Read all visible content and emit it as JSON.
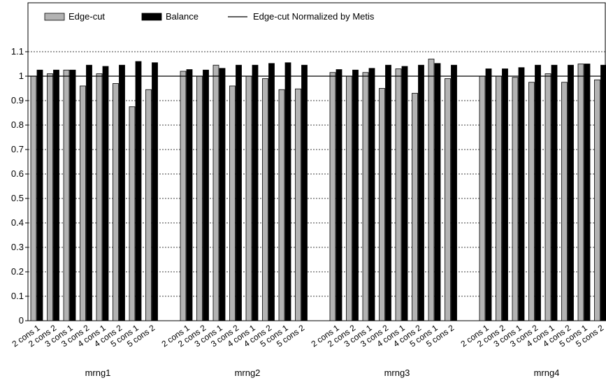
{
  "chart_data": {
    "type": "bar",
    "groups": [
      "mrng1",
      "mrng2",
      "mrng3",
      "mrng4"
    ],
    "categories": [
      "2 cons 1",
      "2 cons 2",
      "3 cons 1",
      "3 cons 2",
      "4 cons 1",
      "4 cons 2",
      "5 cons 1",
      "5 cons 2"
    ],
    "series": [
      {
        "name": "Edge-cut",
        "color": "#b3b3b3",
        "values": [
          [
            1.0,
            1.01,
            1.025,
            0.96,
            1.01,
            0.97,
            0.875,
            0.945
          ],
          [
            1.02,
            1.0,
            1.045,
            0.96,
            1.0,
            0.99,
            0.945,
            0.948
          ],
          [
            1.015,
            1.0,
            1.015,
            0.95,
            1.03,
            0.93,
            1.07,
            0.99
          ],
          [
            1.0,
            1.0,
            0.995,
            0.975,
            1.01,
            0.975,
            1.05,
            0.985
          ]
        ]
      },
      {
        "name": "Balance",
        "color": "#000000",
        "values": [
          [
            1.025,
            1.025,
            1.025,
            1.045,
            1.04,
            1.045,
            1.06,
            1.055
          ],
          [
            1.027,
            1.025,
            1.032,
            1.045,
            1.045,
            1.052,
            1.055,
            1.045
          ],
          [
            1.027,
            1.025,
            1.032,
            1.045,
            1.04,
            1.045,
            1.052,
            1.045
          ],
          [
            1.03,
            1.03,
            1.035,
            1.045,
            1.045,
            1.045,
            1.05,
            1.045
          ]
        ]
      }
    ],
    "reference_line": {
      "name": "Edge-cut Normalized by Metis",
      "value": 1.0
    },
    "yticks": [
      "0",
      "0.1",
      "0.2",
      "0.3",
      "0.4",
      "0.5",
      "0.6",
      "0.7",
      "0.8",
      "0.9",
      "1",
      "1.1"
    ],
    "ylim": [
      0,
      1.1
    ],
    "grid": true,
    "legend_position": "top-left"
  }
}
